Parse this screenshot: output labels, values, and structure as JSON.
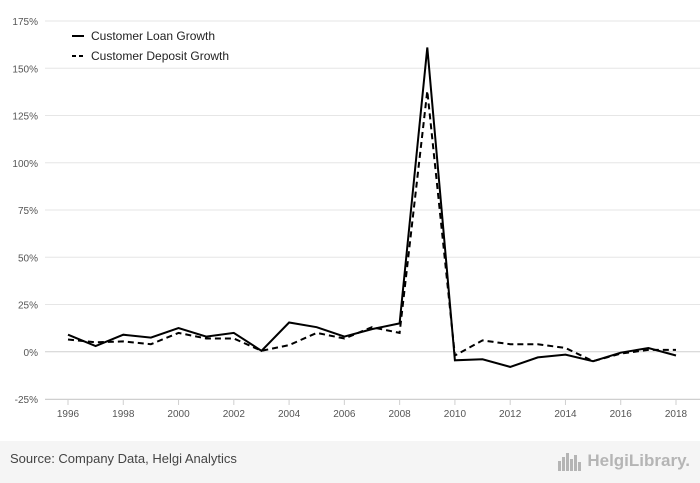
{
  "chart_data": {
    "type": "line",
    "title": "",
    "xlabel": "",
    "ylabel": "",
    "x": [
      1996,
      1997,
      1998,
      1999,
      2000,
      2001,
      2002,
      2003,
      2004,
      2005,
      2006,
      2007,
      2008,
      2009,
      2010,
      2011,
      2012,
      2013,
      2014,
      2015,
      2016,
      2017,
      2018
    ],
    "x_ticks": [
      "1996",
      "1998",
      "2000",
      "2002",
      "2004",
      "2006",
      "2008",
      "2010",
      "2012",
      "2014",
      "2016",
      "2018"
    ],
    "y_ticks": [
      "175%",
      "150%",
      "125%",
      "100%",
      "75%",
      "50%",
      "25%",
      "0%",
      "-25%"
    ],
    "ylim": [
      -25,
      175
    ],
    "grid": true,
    "legend_position": "top-left",
    "series": [
      {
        "name": "Customer Loan Growth",
        "style": "solid",
        "color": "#000000",
        "values": [
          9,
          3,
          9,
          7.5,
          12.5,
          8,
          10,
          0.5,
          15.5,
          13,
          8,
          12,
          15,
          161,
          -4.5,
          -4,
          -8,
          -3,
          -1.5,
          -5,
          -0.5,
          2,
          -2
        ]
      },
      {
        "name": "Customer Deposit Growth",
        "style": "dashed",
        "color": "#000000",
        "values": [
          6.5,
          5,
          5.5,
          4,
          10,
          7,
          7,
          0.5,
          3.5,
          10,
          7,
          13,
          10,
          138,
          -2,
          6,
          4,
          4,
          2,
          -5,
          -1,
          1,
          1
        ]
      }
    ]
  },
  "footer": {
    "source": "Source: Company Data, Helgi Analytics",
    "logo_text": "HelgiLibrary."
  }
}
